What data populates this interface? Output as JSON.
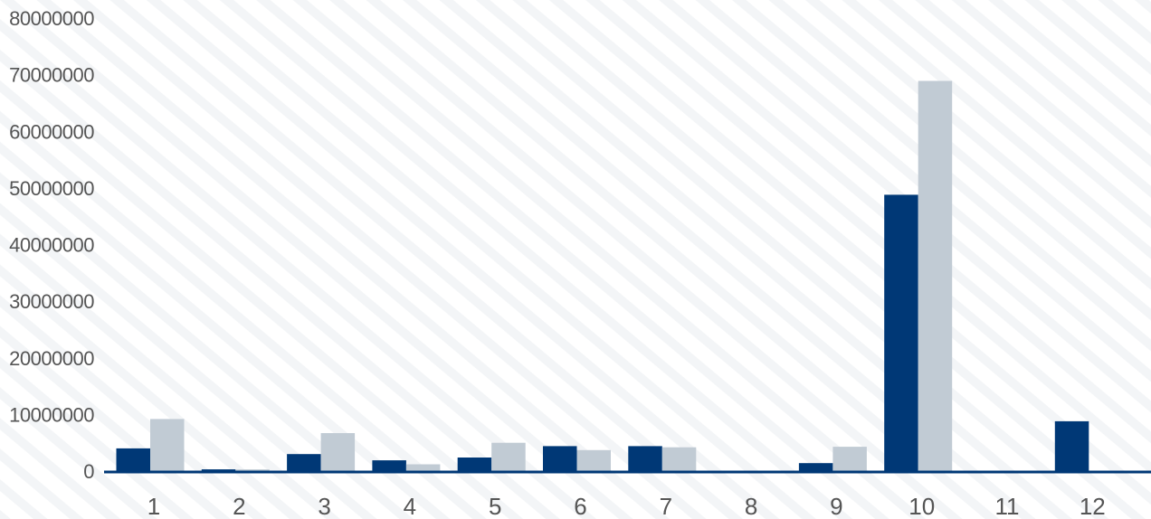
{
  "chart_data": {
    "type": "bar",
    "categories": [
      "1",
      "2",
      "3",
      "4",
      "5",
      "6",
      "7",
      "8",
      "9",
      "10",
      "11",
      "12"
    ],
    "series": [
      {
        "values": [
          4000000,
          300000,
          3000000,
          1900000,
          2400000,
          4400000,
          4400000,
          0,
          1400000,
          48800000,
          0,
          8800000
        ]
      },
      {
        "values": [
          9200000,
          300000,
          6700000,
          1200000,
          5000000,
          3700000,
          4200000,
          0,
          4300000,
          68900000,
          0,
          0
        ]
      }
    ],
    "y_ticks": [
      "0",
      "10000000",
      "20000000",
      "30000000",
      "40000000",
      "50000000",
      "60000000",
      "70000000",
      "80000000"
    ],
    "ylim": [
      0,
      80000000
    ],
    "title": "",
    "xlabel": "",
    "ylabel": "",
    "grid": false,
    "legend": "none",
    "colors": {
      "series_0": "#003876",
      "series_1": "#c1cbd4",
      "axis": "#003876",
      "text": "#555555",
      "stripe": "#f2f4f6"
    }
  }
}
